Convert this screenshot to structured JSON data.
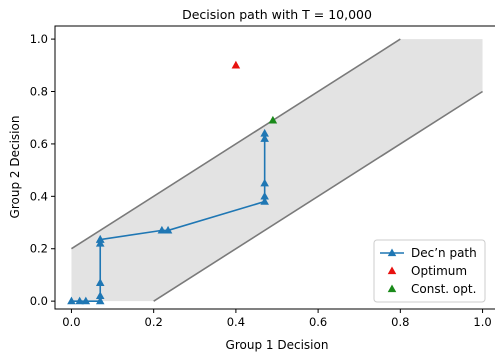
{
  "chart_data": {
    "type": "line",
    "title": "Decision path with T = 10,000",
    "xlabel": "Group 1 Decision",
    "ylabel": "Group 2 Decision",
    "xlim": [
      -0.04,
      1.04
    ],
    "ylim": [
      -0.03,
      1.05
    ],
    "xticks": [
      "0.0",
      "0.2",
      "0.4",
      "0.6",
      "0.8",
      "1.0"
    ],
    "yticks": [
      "0.0",
      "0.2",
      "0.4",
      "0.6",
      "0.8",
      "1.0"
    ],
    "grid": false,
    "legend_position": "lower-right",
    "feasible_region": {
      "polygon": [
        [
          0.0,
          0.0
        ],
        [
          0.2,
          0.0
        ],
        [
          1.0,
          0.8
        ],
        [
          1.0,
          1.0
        ],
        [
          0.8,
          1.0
        ],
        [
          0.0,
          0.2
        ]
      ],
      "fill": "#e3e3e3"
    },
    "boundary_lines": [
      {
        "x": [
          0.0,
          0.8
        ],
        "y": [
          0.2,
          1.0
        ]
      },
      {
        "x": [
          0.2,
          1.0
        ],
        "y": [
          0.0,
          0.8
        ]
      }
    ],
    "series": [
      {
        "name": "Dec’n path",
        "color": "#1f77b4",
        "marker": "triangle",
        "x": [
          0.0,
          0.02,
          0.035,
          0.07,
          0.07,
          0.07,
          0.07,
          0.07,
          0.07,
          0.22,
          0.235,
          0.47,
          0.47,
          0.47,
          0.47,
          0.47
        ],
        "y": [
          0.0,
          0.0,
          0.0,
          0.0,
          0.02,
          0.07,
          0.22,
          0.235,
          0.235,
          0.27,
          0.27,
          0.38,
          0.4,
          0.45,
          0.62,
          0.64
        ]
      },
      {
        "name": "Optimum",
        "color": "#e8110f",
        "marker": "triangle",
        "x": [
          0.4
        ],
        "y": [
          0.9
        ]
      },
      {
        "name": "Const. opt.",
        "color": "#1a8a1a",
        "marker": "triangle",
        "x": [
          0.49
        ],
        "y": [
          0.69
        ]
      }
    ]
  }
}
